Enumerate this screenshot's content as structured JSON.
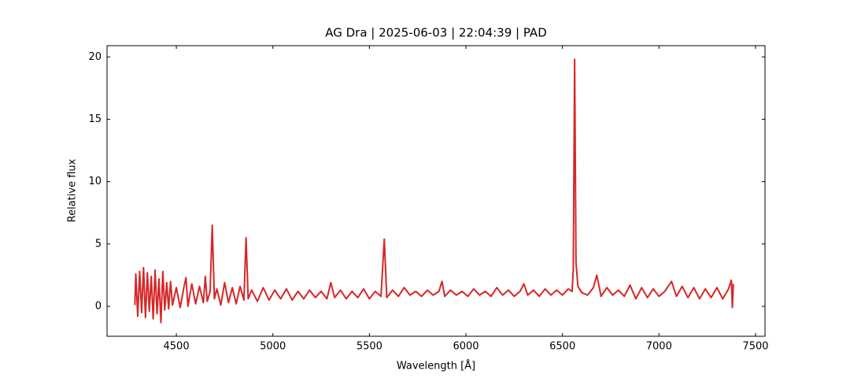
{
  "chart_data": {
    "type": "line",
    "title": "AG Dra | 2025-06-03 | 22:04:39 | PAD",
    "x_label": "Wavelength [Å]",
    "y_label": "Relative flux",
    "xlim": [
      4141,
      7549
    ],
    "ylim": [
      -2.4,
      20.9
    ],
    "xticks": [
      4500,
      5000,
      5500,
      6000,
      6500,
      7000,
      7500
    ],
    "yticks": [
      0,
      5,
      10,
      15,
      20
    ],
    "x": [
      4285,
      4290,
      4300,
      4310,
      4320,
      4330,
      4340,
      4350,
      4360,
      4370,
      4380,
      4390,
      4400,
      4410,
      4420,
      4430,
      4440,
      4450,
      4460,
      4470,
      4480,
      4500,
      4520,
      4540,
      4550,
      4560,
      4580,
      4600,
      4620,
      4640,
      4650,
      4660,
      4675,
      4686,
      4697,
      4710,
      4730,
      4750,
      4770,
      4790,
      4810,
      4830,
      4850,
      4861,
      4872,
      4890,
      4920,
      4950,
      4980,
      5010,
      5040,
      5070,
      5100,
      5130,
      5160,
      5190,
      5220,
      5250,
      5280,
      5300,
      5320,
      5350,
      5380,
      5410,
      5440,
      5470,
      5500,
      5530,
      5560,
      5577,
      5590,
      5620,
      5650,
      5680,
      5710,
      5740,
      5770,
      5800,
      5830,
      5860,
      5876,
      5890,
      5920,
      5950,
      5980,
      6010,
      6040,
      6070,
      6100,
      6130,
      6160,
      6190,
      6220,
      6250,
      6280,
      6300,
      6320,
      6350,
      6380,
      6410,
      6440,
      6470,
      6500,
      6530,
      6550,
      6556,
      6563,
      6570,
      6580,
      6600,
      6630,
      6660,
      6678,
      6700,
      6730,
      6760,
      6790,
      6820,
      6850,
      6880,
      6910,
      6940,
      6970,
      7000,
      7030,
      7065,
      7090,
      7120,
      7150,
      7180,
      7210,
      7240,
      7270,
      7300,
      7330,
      7360,
      7375,
      7380,
      7385
    ],
    "series": [
      {
        "color": "#d62728",
        "values": [
          0.1,
          2.6,
          -0.8,
          2.8,
          -0.5,
          3.1,
          -0.9,
          2.7,
          -0.4,
          2.4,
          -1.0,
          2.9,
          -0.6,
          2.2,
          -1.3,
          2.8,
          -0.3,
          1.9,
          -0.2,
          2.0,
          0.1,
          1.5,
          -0.1,
          1.6,
          2.3,
          0.0,
          1.8,
          0.2,
          1.6,
          0.3,
          2.4,
          0.4,
          1.2,
          6.5,
          0.6,
          1.4,
          0.1,
          1.9,
          0.3,
          1.5,
          0.2,
          1.6,
          0.5,
          5.5,
          0.6,
          1.3,
          0.4,
          1.5,
          0.5,
          1.3,
          0.6,
          1.4,
          0.5,
          1.2,
          0.6,
          1.3,
          0.7,
          1.2,
          0.6,
          1.9,
          0.7,
          1.3,
          0.6,
          1.2,
          0.7,
          1.4,
          0.6,
          1.2,
          0.8,
          5.4,
          0.7,
          1.3,
          0.8,
          1.5,
          0.9,
          1.2,
          0.8,
          1.3,
          0.9,
          1.2,
          2.0,
          0.8,
          1.3,
          0.9,
          1.2,
          0.8,
          1.4,
          0.9,
          1.2,
          0.8,
          1.5,
          0.9,
          1.3,
          0.8,
          1.2,
          1.8,
          0.9,
          1.3,
          0.8,
          1.4,
          0.9,
          1.3,
          0.9,
          1.4,
          1.2,
          3.0,
          19.8,
          3.5,
          1.6,
          1.1,
          0.9,
          1.5,
          2.5,
          0.8,
          1.5,
          0.9,
          1.3,
          0.8,
          1.7,
          0.6,
          1.5,
          0.7,
          1.4,
          0.8,
          1.2,
          2.0,
          0.8,
          1.6,
          0.7,
          1.5,
          0.6,
          1.4,
          0.7,
          1.5,
          0.6,
          1.4,
          2.1,
          -0.1,
          1.8
        ]
      }
    ]
  }
}
